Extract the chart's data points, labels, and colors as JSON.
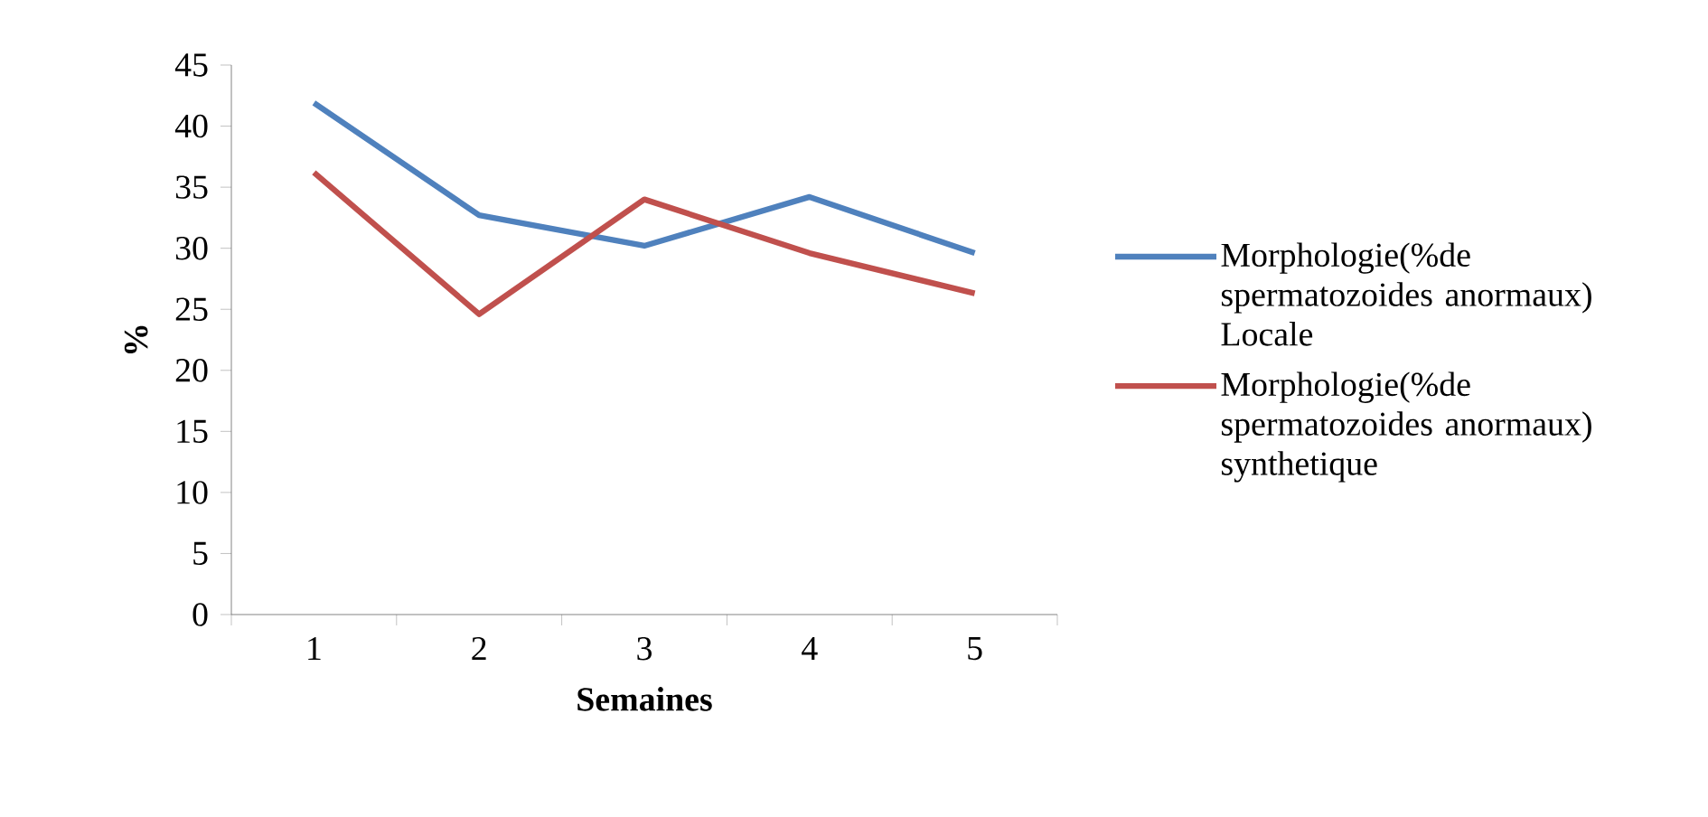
{
  "chart_data": {
    "type": "line",
    "xlabel": "Semaines",
    "ylabel": "%",
    "categories": [
      "1",
      "2",
      "3",
      "4",
      "5"
    ],
    "series": [
      {
        "name": "Morphologie(%de spermatozoides anormaux) Locale",
        "color": "#4f81bd",
        "values": [
          41.9,
          32.7,
          30.2,
          34.2,
          29.6
        ]
      },
      {
        "name": "Morphologie(%de spermatozoides anormaux) synthetique",
        "color": "#c0504d",
        "values": [
          36.2,
          24.6,
          34.0,
          29.6,
          26.3
        ]
      }
    ],
    "ylim": [
      0,
      45
    ],
    "yticks": [
      0,
      5,
      10,
      15,
      20,
      25,
      30,
      35,
      40,
      45
    ],
    "grid": false,
    "legend": "right",
    "marker": "none"
  }
}
